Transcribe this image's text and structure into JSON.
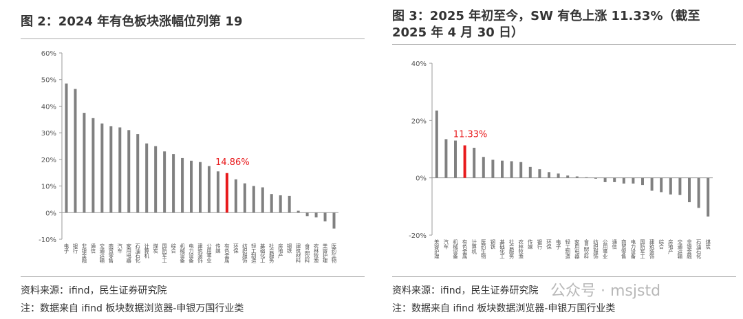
{
  "chart_data": [
    {
      "type": "bar",
      "title": "图 2：2024 年有色板块涨幅位列第 19",
      "categories": [
        "电子",
        "银行",
        "非银金融",
        "通信",
        "交通运输",
        "商贸零售",
        "汽车",
        "家用电器",
        "石油石化",
        "计算机",
        "煤炭",
        "国防军工",
        "综合",
        "机械设备",
        "电力设备",
        "建筑装饰",
        "公用事业",
        "传媒",
        "有色金属",
        "环保",
        "纺织服饰",
        "轻工制造",
        "基础化工",
        "社会服务",
        "房地产",
        "钢铁",
        "建筑材料",
        "食品饮料",
        "农林牧渔",
        "美容护理",
        "医药生物"
      ],
      "values": [
        48.5,
        46.5,
        37.5,
        35.5,
        33.5,
        32.5,
        32,
        31,
        29.5,
        26,
        25,
        23,
        22,
        20.5,
        19.5,
        19,
        17.5,
        15.5,
        14.86,
        12.5,
        11,
        10,
        9.5,
        7,
        6.5,
        6.3,
        0.7,
        -1.3,
        -1.8,
        -3.3,
        -6
      ],
      "value_labels": [
        null,
        null,
        null,
        null,
        null,
        null,
        null,
        null,
        null,
        null,
        null,
        null,
        null,
        null,
        null,
        null,
        null,
        null,
        "14.86%",
        null,
        null,
        null,
        null,
        null,
        null,
        null,
        null,
        null,
        null,
        null,
        null
      ],
      "colors": [
        "#808080",
        "#808080",
        "#808080",
        "#808080",
        "#808080",
        "#808080",
        "#808080",
        "#808080",
        "#808080",
        "#808080",
        "#808080",
        "#808080",
        "#808080",
        "#808080",
        "#808080",
        "#808080",
        "#808080",
        "#808080",
        "#e8191b",
        "#808080",
        "#808080",
        "#808080",
        "#808080",
        "#808080",
        "#808080",
        "#808080",
        "#808080",
        "#808080",
        "#808080",
        "#808080",
        "#808080"
      ],
      "ylim": [
        -10,
        60
      ],
      "yticks": [
        {
          "value": -10,
          "label": "-10%"
        },
        {
          "value": 0,
          "label": "0%"
        },
        {
          "value": 10,
          "label": "10%"
        },
        {
          "value": 20,
          "label": "20%"
        },
        {
          "value": 30,
          "label": "30%"
        },
        {
          "value": 40,
          "label": "40%"
        },
        {
          "value": 50,
          "label": "50%"
        },
        {
          "value": 60,
          "label": "60%"
        }
      ],
      "source": "资料来源：ifind，民生证券研究院",
      "note": "注：数据来自 ifind 板块数据浏览器-申银万国行业类"
    },
    {
      "type": "bar",
      "title": "图 3：2025 年初至今，SW 有色上涨 11.33%（截至 2025 年 4 月 30 日）",
      "categories": [
        "美容护理",
        "汽车",
        "机械设备",
        "有色金属",
        "计算机",
        "医药生物",
        "钢铁",
        "基础化工",
        "社会服务",
        "农林牧渔",
        "传媒",
        "银行",
        "环保",
        "电子",
        "轻工制造",
        "家用电器",
        "食品饮料",
        "纺织服饰",
        "公用事业",
        "通信",
        "商贸零售",
        "电力设备",
        "国防军工",
        "建筑装饰",
        "综合",
        "房地产",
        "交通运输",
        "非银金融",
        "石油石化",
        "煤炭"
      ],
      "values": [
        23.5,
        13.5,
        13,
        11.33,
        10.5,
        7.3,
        6.3,
        6,
        5.8,
        5.5,
        3.8,
        3,
        2,
        1.5,
        0.8,
        0.5,
        0.2,
        -0.3,
        -1.5,
        -1.5,
        -2,
        -2,
        -2.5,
        -4.5,
        -5,
        -5.8,
        -6,
        -8.5,
        -10.5,
        -13.5
      ],
      "value_labels": [
        null,
        null,
        null,
        "11.33%",
        null,
        null,
        null,
        null,
        null,
        null,
        null,
        null,
        null,
        null,
        null,
        null,
        null,
        null,
        null,
        null,
        null,
        null,
        null,
        null,
        null,
        null,
        null,
        null,
        null,
        null
      ],
      "colors": [
        "#808080",
        "#808080",
        "#808080",
        "#e8191b",
        "#808080",
        "#808080",
        "#808080",
        "#808080",
        "#808080",
        "#808080",
        "#808080",
        "#808080",
        "#808080",
        "#808080",
        "#808080",
        "#808080",
        "#808080",
        "#808080",
        "#808080",
        "#808080",
        "#808080",
        "#808080",
        "#808080",
        "#808080",
        "#808080",
        "#808080",
        "#808080",
        "#808080",
        "#808080",
        "#808080"
      ],
      "ylim": [
        -20,
        40
      ],
      "yticks": [
        {
          "value": -20,
          "label": "-20%"
        },
        {
          "value": 0,
          "label": "0%"
        },
        {
          "value": 20,
          "label": "20%"
        },
        {
          "value": 40,
          "label": "40%"
        }
      ],
      "source": "资料来源：ifind，民生证券研究院",
      "note": "注：数据来自 ifind 板块数据浏览器-申银万国行业类"
    }
  ],
  "watermark": "公众号 · msjstd"
}
